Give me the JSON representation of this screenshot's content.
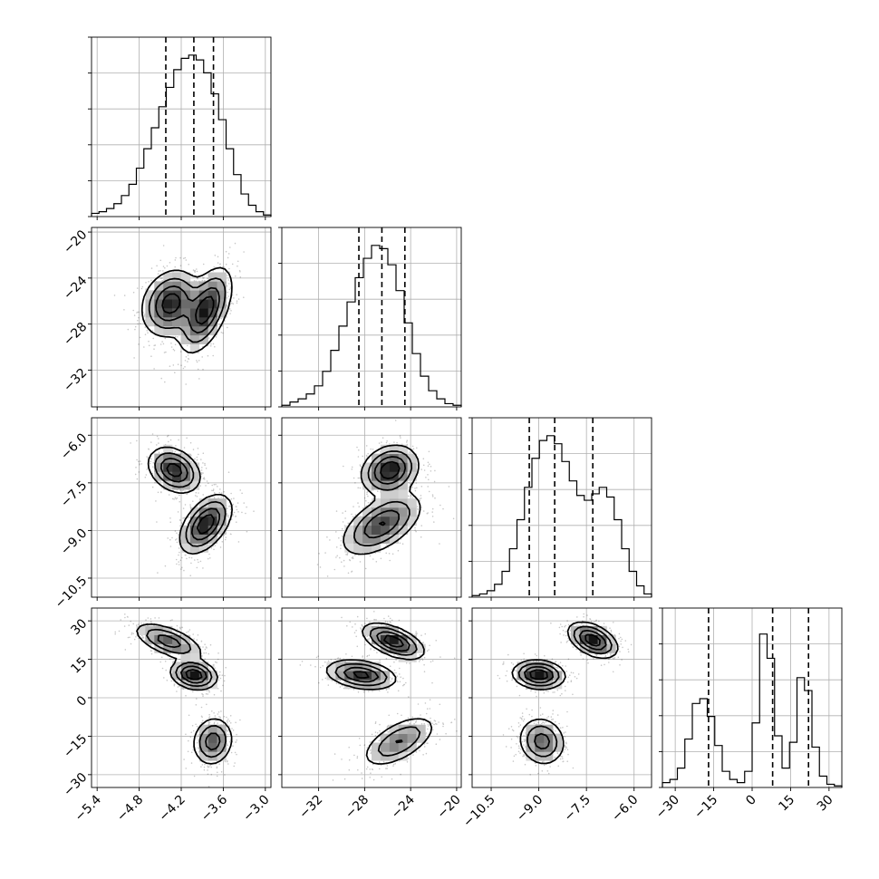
{
  "chart_data": {
    "type": "corner",
    "grid": true,
    "variables": [
      {
        "ticks": [
          -5.4,
          -4.8,
          -4.2,
          -3.6,
          -3.0
        ],
        "tick_labels": [
          "−5.4",
          "−4.8",
          "−4.2",
          "−3.6",
          "−3.0"
        ],
        "range": [
          -5.48,
          -2.92
        ],
        "quantiles": [
          -4.42,
          -4.02,
          -3.74
        ]
      },
      {
        "ticks": [
          -32,
          -28,
          -24,
          -20
        ],
        "tick_labels": [
          "−32",
          "−28",
          "−24",
          "−20"
        ],
        "range": [
          -35.2,
          -19.6
        ],
        "quantiles": [
          -28.5,
          -26.5,
          -24.5
        ]
      },
      {
        "ticks": [
          -10.5,
          -9.0,
          -7.5,
          -6.0
        ],
        "tick_labels": [
          "−10.5",
          "−9.0",
          "−7.5",
          "−6.0"
        ],
        "range": [
          -11.1,
          -5.45
        ],
        "quantiles": [
          -9.3,
          -8.5,
          -7.3
        ]
      },
      {
        "ticks": [
          -30,
          -15,
          0,
          15,
          30
        ],
        "tick_labels": [
          "−30",
          "−15",
          "0",
          "15",
          "30"
        ],
        "range": [
          -35,
          35
        ],
        "quantiles": [
          -17,
          8,
          22
        ]
      }
    ],
    "histograms": [
      {
        "bin_edges_range": [
          -5.48,
          -2.92
        ],
        "counts": [
          0.02,
          0.03,
          0.05,
          0.08,
          0.13,
          0.2,
          0.3,
          0.42,
          0.55,
          0.68,
          0.8,
          0.91,
          0.98,
          1.0,
          0.97,
          0.89,
          0.76,
          0.6,
          0.42,
          0.26,
          0.14,
          0.07,
          0.03,
          0.01
        ]
      },
      {
        "bin_edges_range": [
          -35.2,
          -19.6
        ],
        "counts": [
          0.01,
          0.03,
          0.05,
          0.08,
          0.13,
          0.22,
          0.35,
          0.5,
          0.65,
          0.8,
          0.92,
          1.0,
          0.98,
          0.88,
          0.72,
          0.52,
          0.33,
          0.19,
          0.1,
          0.05,
          0.02,
          0.01
        ]
      },
      {
        "bin_edges_range": [
          -11.1,
          -5.45
        ],
        "counts": [
          0.01,
          0.02,
          0.04,
          0.08,
          0.16,
          0.3,
          0.48,
          0.68,
          0.86,
          0.97,
          1.0,
          0.95,
          0.84,
          0.72,
          0.63,
          0.6,
          0.64,
          0.68,
          0.62,
          0.48,
          0.3,
          0.16,
          0.07,
          0.02
        ]
      },
      {
        "bin_edges_range": [
          -35,
          35
        ],
        "counts": [
          0.03,
          0.05,
          0.12,
          0.3,
          0.52,
          0.55,
          0.44,
          0.26,
          0.1,
          0.05,
          0.03,
          0.1,
          0.4,
          0.95,
          0.8,
          0.32,
          0.12,
          0.28,
          0.68,
          0.6,
          0.25,
          0.07,
          0.02,
          0.01
        ]
      }
    ],
    "joint": [
      {
        "row": 1,
        "col": 0,
        "components": [
          {
            "mx": -4.35,
            "my": -26.2,
            "sx": 0.2,
            "sy": 1.4,
            "rho": 0.2,
            "w": 0.5
          },
          {
            "mx": -3.85,
            "my": -26.8,
            "sx": 0.18,
            "sy": 1.8,
            "rho": 0.55,
            "w": 0.5
          }
        ]
      },
      {
        "row": 2,
        "col": 0,
        "components": [
          {
            "mx": -4.3,
            "my": -7.1,
            "sx": 0.18,
            "sy": 0.35,
            "rho": -0.3,
            "w": 0.45
          },
          {
            "mx": -3.85,
            "my": -8.8,
            "sx": 0.18,
            "sy": 0.45,
            "rho": 0.5,
            "w": 0.55
          }
        ]
      },
      {
        "row": 2,
        "col": 1,
        "components": [
          {
            "mx": -25.8,
            "my": -7.1,
            "sx": 1.2,
            "sy": 0.38,
            "rho": 0.2,
            "w": 0.45
          },
          {
            "mx": -26.5,
            "my": -8.8,
            "sx": 1.7,
            "sy": 0.48,
            "rho": 0.55,
            "w": 0.55
          }
        ]
      },
      {
        "row": 3,
        "col": 0,
        "components": [
          {
            "mx": -4.38,
            "my": 22,
            "sx": 0.24,
            "sy": 3.5,
            "rho": -0.6,
            "w": 0.34
          },
          {
            "mx": -4.02,
            "my": 9,
            "sx": 0.16,
            "sy": 2.8,
            "rho": -0.2,
            "w": 0.33
          },
          {
            "mx": -3.75,
            "my": -17,
            "sx": 0.14,
            "sy": 4.6,
            "rho": 0.1,
            "w": 0.33
          }
        ]
      },
      {
        "row": 3,
        "col": 1,
        "components": [
          {
            "mx": -25.5,
            "my": 22,
            "sx": 1.3,
            "sy": 3.4,
            "rho": -0.55,
            "w": 0.34
          },
          {
            "mx": -28.3,
            "my": 9,
            "sx": 1.5,
            "sy": 2.8,
            "rho": -0.3,
            "w": 0.33
          },
          {
            "mx": -25.0,
            "my": -17,
            "sx": 1.6,
            "sy": 5.0,
            "rho": 0.6,
            "w": 0.33
          }
        ]
      },
      {
        "row": 3,
        "col": 2,
        "components": [
          {
            "mx": -7.3,
            "my": 22.5,
            "sx": 0.38,
            "sy": 3.4,
            "rho": -0.45,
            "w": 0.34
          },
          {
            "mx": -9.0,
            "my": 9,
            "sx": 0.4,
            "sy": 2.7,
            "rho": -0.1,
            "w": 0.33
          },
          {
            "mx": -8.9,
            "my": -17,
            "sx": 0.36,
            "sy": 4.6,
            "rho": -0.1,
            "w": 0.33
          }
        ]
      }
    ]
  }
}
